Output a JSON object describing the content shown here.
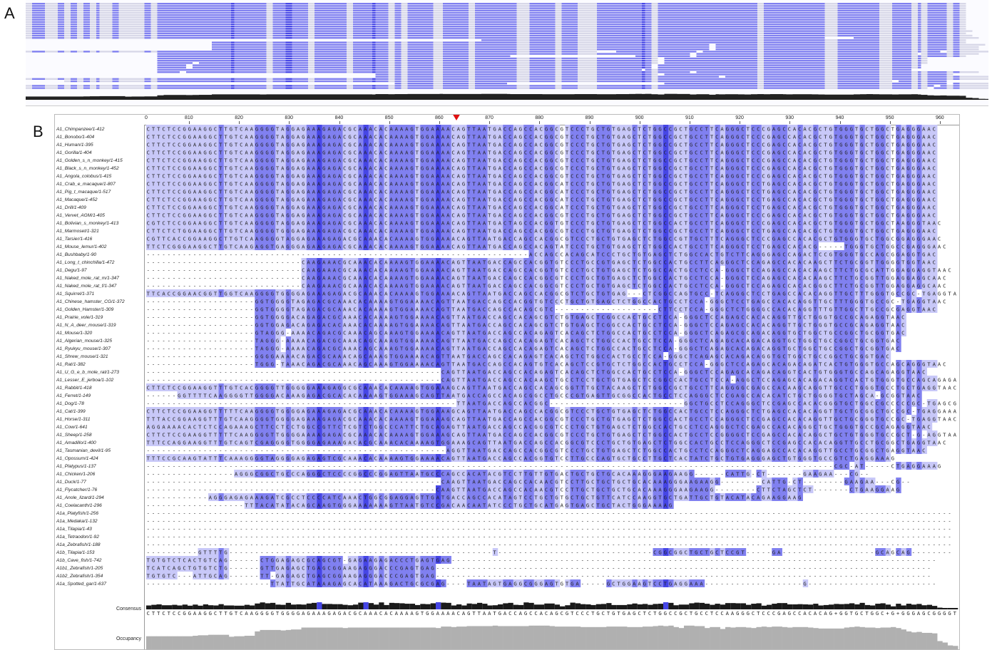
{
  "panels": {
    "a_label": "A",
    "b_label": "B"
  },
  "ruler": {
    "ticks": [
      "810",
      "820",
      "830",
      "840",
      "850",
      "860",
      "870",
      "880",
      "890",
      "900",
      "910",
      "920",
      "930",
      "940",
      "950",
      "960"
    ],
    "first_label": "0"
  },
  "sequences": [
    "A1_Chimpanzee/1-412",
    "A1_Bonobo/1-404",
    "A1_Human/1-395",
    "A1_Gorilla/1-404",
    "A1_Golden_s_n_monkey/1-415",
    "A1_Black_s_n_monkey/1-452",
    "A1_Angola_colobus/1-415",
    "A1_Crab_e_macaque/1-807",
    "A1_Pig_t_macaque/1-517",
    "A1_Macaque/1-452",
    "A1_Drill/1-409",
    "A1_Vervet_AGM/1-405",
    "A1_Bolivian_s_monkey/1-413",
    "A1_Marmoset/1-321",
    "A1_Tarsier/1-416",
    "A1_Mouse_lemur/1-402",
    "A1_Bushbaby/1-90",
    "A1_Long_t_chinchilla/1-472",
    "A1_Degu/1-97",
    "A1_Naked_mole_rat_m/1-347",
    "A1_Naked_mole_rat_f/1-347",
    "A1_Squirrel/1-371",
    "A1_Chinese_hamster_CG/1-372",
    "A1_Golden_Hamster/1-309",
    "A1_Prairie_vole/1-319",
    "A1_N_A_deer_mouse/1-319",
    "A1_Mouse/1-320",
    "A1_Algerian_mouse/1-325",
    "A1_Ryukyu_mouse/1-307",
    "A1_Shrew_mouse/1-321",
    "A1_Rat/1-382",
    "A1_U_G_e_b_mole_rat/1-273",
    "A1_Lesser_E_jerboa/1-102",
    "A1_Rabbit/1-418",
    "A1_Ferret/1-149",
    "A1_Dog/1-78",
    "A1_Cat/1-399",
    "A1_Horse/1-311",
    "A1_Cow/1-641",
    "A1_Sheep/1-258",
    "A1_Amadillo/1-400",
    "A1_Tasmanian_devil/1-95",
    "A1_Opossum/1-424",
    "A1_Platypus/1-137",
    "A1_Chicken/1-206",
    "A1_Duck/1-77",
    "A1_Flycatcher/1-76",
    "A1_Anole_lizard/1-294",
    "A1_Coelacanth/1-296",
    "A1a_Platyfish/1-256",
    "A1a_Medaka/1-132",
    "A1a_Tilapia/1-43",
    "A1a_Tetraodon/1-92",
    "A1a_Zebrafish/1-188",
    "A1b_Tilapia/1-153",
    "A1b_Cave_fish/1-742",
    "A1b1_Zebrafish/1-205",
    "A1b2_Zebrafish/1-354",
    "A1a_Spotted_gar/1-637"
  ],
  "alignment_rows": [
    "CTTCTCCGGAAGGCTTGTCAAGGGGTAGGAGAAAGAGACGCAAACACAAAAGTGGAAAACAGTTAATGACCAGCCACGGCGTCCCTGCTGTGAGCTCTGGCCGCTGCCTTCAGGGCTCCCGAGCCACACGCTGTGGGTGCTGGCTGAGGGAAC",
    "CTTCTCCGGAAGGCTTGTCAAGGGGTAGGAGAAAGAGACGCAAACACAAAAGTGGAAAACAGTTAATGACCAGCCACGGCGTCCCTGCTGTGAGCTCTGGCCGCTGCCTTCAGGGCTCCCGAGCCACACGCTGTGGGTGCTGGCTGAGGGAAC",
    "CTTCTCCGGAAGGCTTGTCAAGGGGTAGGAGAAAGAGACGCAAACACAAAAGTGGAAAACAGTTAATGACCAGCCACGGCGTCCCTGCTGTGAGCTCTGGCCGCTGCCTTCAGGGCTCCCGAGCCACACGCTGTGGGTGCTGGCTGAGGGAAC",
    "CTTCTCCGGAAGGCTTGTCAAGGGGTAGGAGAAAGAGACGCAAACACAAAAGTGGAAAACAGTTAATGACCAGCCACGGCGTCCCTGCTGTGAGCTCTGGCCGCTGCCTTCAGGGCTCCCGAGCCACACGCTGTGGGTGCTGGCTGAGGGAAC",
    "CTTCTCCGGAAGGCTTGTCAAGGGGTAGGAGAAAGAGACGCAAACACAAAAGTGGAAAACAGTTAATGACCAGCCACGGCGTCCCTGCTGTGAGCTCTGGCCGCTGCCTTCAGGGCTCCCGAGCCACACGCTGTGGGTGCTGGCTGAGGGAAC",
    "CTTCTCCGGAAGGCTTGTCAAGGGGTAGGAGAAAGAGACGCAAACACAAAAGTGGAAAACAGTTAATGACCAGCCACGGCGTCCCTGCTGTGAGCTCTGGCCGCTGCCTTCAGGGCTCCCGAGCCACACGCTGTGGGTGCTGGCTGAGGGAAC",
    "CTTCTCCGGAAGGCTTGTCAAGGGGTAGGAGAAAGAGACGCAAACACAAAAGTGGAAAACAGTTAATGACCAGCCACGGCGTCCCTGCTGTGAGCTCTGGCCGCTGCCTTCAGGGCTCCCGAGCCACACGCTGTGGGTGCTGGCTGAGGGAAC",
    "CTTCTCCGGAAGGCTTGTCAAGGGGTAGGAGAAAGAGACGCAAACACAAAAGTGGAAAACAGTTAATGACCAGCCACGGCATCCCTGCTGTGAGCTCTGGCCGCTGCCTTCAGGGCTCCTGAGCCACACGCTGTGGGTGCTGGCTGAGGGAAC",
    "CTTCTCCGGAAGGCTTGTCAAGGGGTAGGAGAAAGAGACGCAAACACAAAAGTGGAAAACAGTTAATGACCAGCCACGGCATCCCTGCTGTGAGCTCTGGCCGCTGCCTTCAGGGCTCCTGAGCCACACGCTGTGGGTGCTGGCTGAGGGAAC",
    "CTTCTCCGGAAGGCTTGTCAAGGGGTAGGAGAAAGAGACGCAAACACAAAAGTGGAAAACAGTTAATGACCAGCCACGGCATCCCTGCTGTGAGCTCTGGCCGCTGCCTTCAGGGCTCCTGAGCCACACGCTGTGGGTGCTGGCTGAGGGAAC",
    "CTTCTCCGGAAGGCTTGTCAAGGGGTAGGAGAAAGAGACGCAAACACAAAAGTGGAAAACAGTTAATGACCAGCCACGGCATCCCTGCTGTGAGCTCTGGCCGCTGCCTTCAGGGCTCCTGAGCCACACGCTGTGGGTGCTGGCTGAGGGAAC",
    "CTTCTCCGGAAGGCTTGTCAAGGGGTAGGAGAAAGAGACGCAAACACAAAAGTGGAAAACAGTTAATGACCAGCCACGGCGTCCCTGCTGTGAGCTCTGGCCGCTGCCTTCAGGGCTCCCGAGCCACACGCTGTGGGTGCTGGCTGAGGGAAC",
    "CGTCTCCGGAAGGCTTGTCAAGGGGTAGGAGAAAGAGACGCAAACACAAAAGTGGAAAACAGTTAATGACTAGCCACGGTGTCCCTGCTGTGAGCTCTGGCCACTGCCTTCAGGGCTCCCGAGCCACACGCTGTGGGTGCTGGCTAAGGGTAAC",
    "CTTCTCTGGAAGGCTTGTCAAGGGGTGGGAGAAAGAGACGCAAACACAAAAGTGGAAAACAGTTAATGACCAGCCACGGCGTCCCTGCTGTGAGCTCTGGCCGCTGCCTTCAGGGCTCCTGAGCCACACGCTGTGGGTGCTGGCTGAGGGAAC",
    "CGTTCACCGGAAGGCTTGTCAAGGGGTAGGAGAAAGAGACGCAAACACAAAAGTGGAAAACAGTTAATGACCAGCCACGGCGTCCCTGCTGTGAGCTCTGGCCGTTGCTTTCAGGGCTCCCGAGCCACACGCTGTGGGTGCTGGCGGAGGGAAC",
    "TTCTCGGGAAGGCTTGTCAAGAGGTGAGGGAGAAGAGACGCAAACACAAAAGTGGAAAACAGTTAATGACCAGCCACAGTATCCCTGCTGTGAGCTCTGGCCACTGCCTTCAGGGCTCCTGAGCCACACG-----TGGGTGCTGGCCGAGGGAAC",
    "--------------------------------------------------------------------------ACCAGCCACAGCATCCCTGCTGTGAGCTCTGGCCACTGTCTTCAGGGAGCCAGACTCCGTGGGTGCCAGCGGAGGTGAC",
    "------------------------------CAAGAAACGCAAACACAAAAGTGGAAAACAGTTAATGACCAGCCACGGTGTCCCTGCCGTGAGCTCTGGCCACTGCCTTCAGGGCTCCAGAGCCACACAAGCTTCTGCGGTTGGGGTGGTAAC",
    "------------------------------CAAGAAACGCAAACACAAAAGTGGAAAACAGTTAATGACCAGCCACGGTGTCCCTGCTGTGAGCTCTGGCCACTGCCTCCA-GGGCTCCAGAGCCACACAAGCTTCTGCGCATTGGAGGAGGTAAC",
    "------------------------------CAAGAAACGCAAACACAAAAGTGGAAAACAGTTAATGACCAGCCACGGCGTCCCTGCTGTGAGCTCTGGCCACTGCCTCCA-GGGCTCCAGAGCCACACAAGCTTCTGCGGTTGGAGGAGGCAAC",
    "------------------------------CAAGAAACGCAAACACAAAAGTGGAAAACAGTTAATGACCAGCCACGGCGTCCCTGCTGTGAGCTCTGGCCACTGCCTCCA-GGGCTCCAGAGCCACACGGGCTTCTGCGGTTGGAGGAGGCAAC",
    "TTCACCGGAACGGTTGGTCAAGGGGTGGGGAGAAAGAGACGCAAACACAAAAGTGGAAAACAGTTAATGACCAGCCACGGCGTCTGCTGTGAG---CTCGGCCAGTGCC-TCAGGGCTCCTGAGCCACACAGGTTGCTTTGGGTGCCGC-TGAGGTAAC",
    "---------------------GGTGGGGTAGAGACGCAAACACAAAAGTGGAAAACAGTTAATGACCAGCCACGGTGTCCCTGCTGTGAGCTCTGGCCACTGCCTCCA-GGGCTCCTGAGCCACACAGGTTGCTTTGGGTGCCGC-TGAGGTAAC",
    "---------------------GGTGGGGTAGAGACGCAAACACAAAAGTGGAAAACAGTTAATGACCAGCCACAGCGTC--------------------CTTCCTCCA-GGGCTCTGGGGCCACACAGGTTTGTTGGCTTGCCGCGAGGTAAC",
    "---------------------GGTGGGGACAGAGACGCAAACACAAAAGTGGAAAACAGTTAATGACCAGCCACAGCGTCTGTGAGCTCGGCCACTGCCTCCA-GGGCTCCAGAGCCACACAGGTTGCTGGGTGCCGCAGAGGTAAC",
    "---------------------GGTGGAGACAGAGACACAAACACAAAAGTGGAAAACAGTTAATGACCAGCCACAGCGTCTGTGAGCTCGGCCACTGCCTCCA-GGGCTCCAGAGCCACACAGGTTGCTGGGTGCCGCAGAGGTAAC",
    "---------------------GTAGGG-AAAACAGACGCAAACAGCAAAGTGGAAAACAGTTAATGACCAGCCACAGAGTCACAGCTCTGGCCACTGCCTCCA-GGGCTCAGAGCGCAGACAGGTGCTGGCTGCCGGCTGCGGTGAC",
    "---------------------TAGGG-AAAACAGACGCAAACAGCAAAGTGGAAAACAGTTAATGACCAGCCACAGAGTCACAGCTCTGGCCACTGCCTCCA-GGGCTCAGAGCACAGACAGGTGCTGGCTGCCGGCTGCGGTGAC",
    "---------------------TAGGG-AAAACAGACGCAAACAGCAAAGTGGAAAACAGTTAATGACCAGCCACAGAGTCACAGCTCTGGCCACTGCCTCCA-GGGCTCAGAGCACAGACAGGTGCTGGCTGCCGGCTGCGGTGAC",
    "---------------------GGGGAAAACAGACGCAAACAGCAAAGTGGAAAACAGTTAATGACCAGCCACAGAGTCACAGCTCTGGCCACTGCCTCCA-GGGCTCAGAGCACAGACAGGTGCTGGCTGCCGGCTGCGGTGAC",
    "---------------------TGGG-TAAACAGACGCAAACAGCAAAGTGGAAAACAGTTAATGACCAGCCACAGTGTCACAGCTCCGTGCTCTGGCCACTGCCTCCA-GGGCTCCAGAGCACAGACAGATCACTGTGGGTGCCAGCAGGGTAAC",
    "---------------------------------------------------------CAGTTAATGACCAGCCACAGAGTCACAGCTCTGGCCACTGCCTCCA-GGGCTCCAGAGCACAGACAGGTCACTGTGGGTGCCAGCAGAGGTAAC",
    "---------------------------------------------------------CAGTTAATGACCAGCCACAAGCTGCCTCCTGCTGTGAGCTCCGGCCACTGCCTCCA-AGGCTCCAGAGCACAGACAGGTCACTGTGGGTGCCAGCAGAGAAAC",
    "CTTCTCCGGAAGGTTTGTCACGGGGTTGGGGGAAAGAGGCGCAAACACAAAAGTGGAAAGCAGTTAATGACCAGCCACAGCGGTTTGCTACAAGCTCTGGCCGCTGCCTTCAGGGGCGAGCCACAAGCAGGTTGCCCTGGGTGCCTGCTGAGGTAAC",
    "------GGTTTTCAAGGGGTTGGGGACAAAGAGACGCACACAAAAGTGGAAAGCAGTTAATGACCAGCCACAGCGGCCTGCCCGTGAGTTGCGGCCACTGCCTCCAGGGCTCCGAGCCACACATCTGCTGGGGTGCTAGCA-GCGGTAAC",
    "------------------------------------------------------------TTAATGACCAGCCACGGC--------------------------GGCTGCCTCCAGGGCTCCGAGCCACACGGGTGCTGGCCGCCCCCGC-TGAGCGAC",
    "CTTCTCCGGAAGGTTTTTCAAGGGGTGGGGAGAAAGAGACGCAAACACAAAAGTGGAAAGCAGTTAATGACCAGCCACGGCGTCCCTGCTGTGAGCTCTGGCCACTGCCTCCAGGGCTCTGAGCCACACAGGTTGCTGCGGCTGCCGC-TGAGGAAAC",
    "TTTACCGGAAGGTTTGTCAAGGGGTGGGGAGAAAGAGACGCAAACACAAAAGTGGAAAGCAGTTAATGACCAGCCACGGCGTCCCTGCTGTGAGCTCTGGCCACTGCCTCCAGGGCTCCGAGCCACACAGGTTGCTGCGGGTGCCGC-TGAGGTAAC",
    "AGGAAAACACTCTCCAGAAAGCTTCCTCCTGGCCGTTCTCGTCTGGCCCATTCTGCAGAGTTAATGACCAGCCACGGCGTCCCTGCTGTGAGCTCTGGCCACTGCCTCCAGGGCTCCGAGCCACACAGGCTGCTGGGTGCCGCAGAGGTAAC",
    "CTTCTCCGAAGGTTTTTCAAGGGGTTGGGGAAAAGAGACGCAAACACAAAAGTGGAAAGCAGTTAATGACCAGCCACGGCGTCCCTGCTGTGAGCTCTGGCCACTGCCTCCGGGGCTCCGAGCCACACAGGCTGCTGTGGGTGCCGCT-G-AGGTAAC",
    "TTTCCAGGAAGGTTTGTCAGTCGAGGGGTGGGGAGAAAGACACGCAAACACAAAAGTGGAAAGCAGTTAATGACCAGCCACGGCGTCCCTGCTGTGAGCTCTGGCCACTGCCTCCAGGGCTCCGAGCCACACAGGTTGCCTGCGGCTGAGGTAAC",
    "----------------------------------------------------------AGGTTAATGACCAGCCACGGCGTCCCTGCTGTGAGCTCTGGCCACTGCCTCCAGGGCTCAGGAGCCACACAGGTTGCCTGCGGCTGAGGTAAC",
    "TTTCCGCAAGTATTTCAAAGGGGTAGGGGAGAGAGTCGCAAACACAAAAGTGGAAAACAGTTAATGACCAGCCACGGTGTCCTTGCCCAGTGCTGCCTTGCTCACTATCTGCTGTGAGGGAGCTGTGGGTGCCGTCTGAGGAAAG",
    "-------------------------------------------------------------------------------------------------------------------------------------CGC-AT-----CTGAGGAAAG",
    "-----------------AGGGCGGCTGCCCAGGGCTCCCCGGCCCGGAGTTAATGCCCAGCCACATACGTCCTTGTTGTGACTGCTGCTGCACAAAGGGAAGAAGG------CATTG-CT-------GAAGAA---CG--",
    "---------------------------------------------------------CAAGTTAATGACCAGCCACAACGTCCTTGCTGCTGCTGCACAAAGGGAAGAAGG--------CATTG-CT--------GAAGAA---CG--",
    "--------------------------------------------------------CAAGTTAATGACCAGCCACAACGTCCTTGCTGCTGCTGCACAAAGGGAAGAAGG--------CTTCTAGCTCT-------CTGAAGGAAG",
    "------------AGGGAGAGAAAGATCGCCTCCCCATCAAACTGGCGGAGGAGTTGATGACCAGCCACATAGTCCTGCTGTGCTGCTGTTCATCCAAGGTGCTGATTGCTGTACATACAGAAGGAAG",
    "-------------------TTTACATATACAGCAAGTGGGAAAAAAAGTTAATGTCCGACAACAATATCCCTGCTGCATGAGTGAGCTGCTACTGGGAAAAG",
    "------------------------------------------------------------------------------------------------------------------------------------------------------------",
    "------------------------------------------------------------------------------------------------------------------------------------------------------------",
    "------------------------------------------------------------------------------------------------------------------------------------------------------------",
    "------------------------------------------------------------------------------------------------------------------------------------------------------------",
    "------------------------------------------------------------------------------------------------------------------------------------------------------------",
    "----------GTTTTG---------------------------------------------------T------------------------------CGGCGGCTGCTGCTCCGT-----GA------------------GCAGCAG--------",
    "TGTGTCTCACTGTCAG------CTGGAGAGCGCAGCGT-GAGAAGAGACCCTGAGTGAG----------------------------------------------------------------------------------------------",
    "TCATCAGCTGTGTCTG------GTTGAGAGCTGAGCGGAAGAGGGACCCGAGTGAG------------------------------------------------------------------------------------------------",
    "TGTGTC---ATTGCAG------TT-GAGAGCTGAGCGGAAGAGGGACCCGAGTGAG------------------------------------------------------------------------------------------------",
    "------------------------TTATTGCATAAAGAGCACATAAAGACTGCGCGAG----TAATAGTGAGGCGGGAGTGTGA-----GCTGGAAGTCCTGAGGAAA-------------------G-------------------------"
  ],
  "consensus": {
    "label": "Consensus",
    "sequence": "CTTCTCCGGAAGGCTTGTCAAGGGGTGGGGAGAAAGAGACGCAAACACAAAAGTGGAAAACAGTTAATGACCAGCCACAGCGTCCCTGCTGTGAGCTCTGGCCGCTGCCTCCAAGGGCTCCCGAGCCACACAG+GGTGCTGGC+G+GGGAGCGGGGTAAC"
  },
  "occupancy": {
    "label": "Occupancy"
  },
  "colors": {
    "strong": "#4646e6",
    "medium": "#8080f0",
    "light": "#c8c8f8",
    "consensus_bar": "#1a1a1a",
    "occupancy_fill": "#b0b0b0",
    "arrow": "#e01010"
  }
}
